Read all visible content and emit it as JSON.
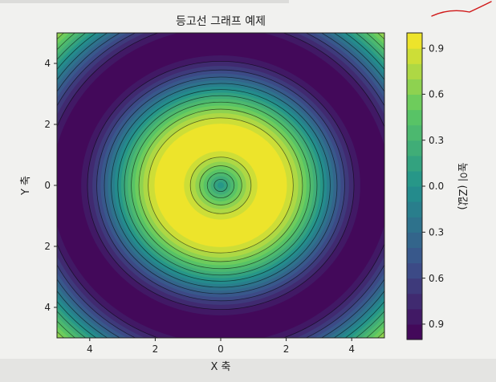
{
  "chart_data": {
    "type": "contourf",
    "title": "등고선 그래프 예제",
    "xlabel": "X 축",
    "ylabel": "Y 축",
    "x_tick_labels": [
      "4",
      "2",
      "0",
      "2",
      "4"
    ],
    "x_tick_values": [
      -4,
      -2,
      0,
      2,
      4
    ],
    "y_tick_labels": [
      "4",
      "2",
      "0",
      "2",
      "4"
    ],
    "y_tick_values": [
      4,
      2,
      0,
      -2,
      -4
    ],
    "xlim": [
      -5,
      5
    ],
    "ylim": [
      -5,
      5
    ],
    "function": "Z = sin(sqrt(X^2 + Y^2))",
    "colormap": "viridis",
    "zlim": [
      -1,
      1
    ],
    "filled_levels": 20,
    "line_levels": 10,
    "line_color": "#000000",
    "colorbar": {
      "label": "높이 (Z값)",
      "tick_labels": [
        "0.9",
        "0.6",
        "0.3",
        "0.0",
        "0.3",
        "0.6",
        "0.9"
      ],
      "tick_values": [
        0.9,
        0.6,
        0.3,
        0.0,
        -0.3,
        -0.6,
        -0.9
      ]
    },
    "grid": false
  },
  "annotation": {
    "color": "#d01818"
  }
}
